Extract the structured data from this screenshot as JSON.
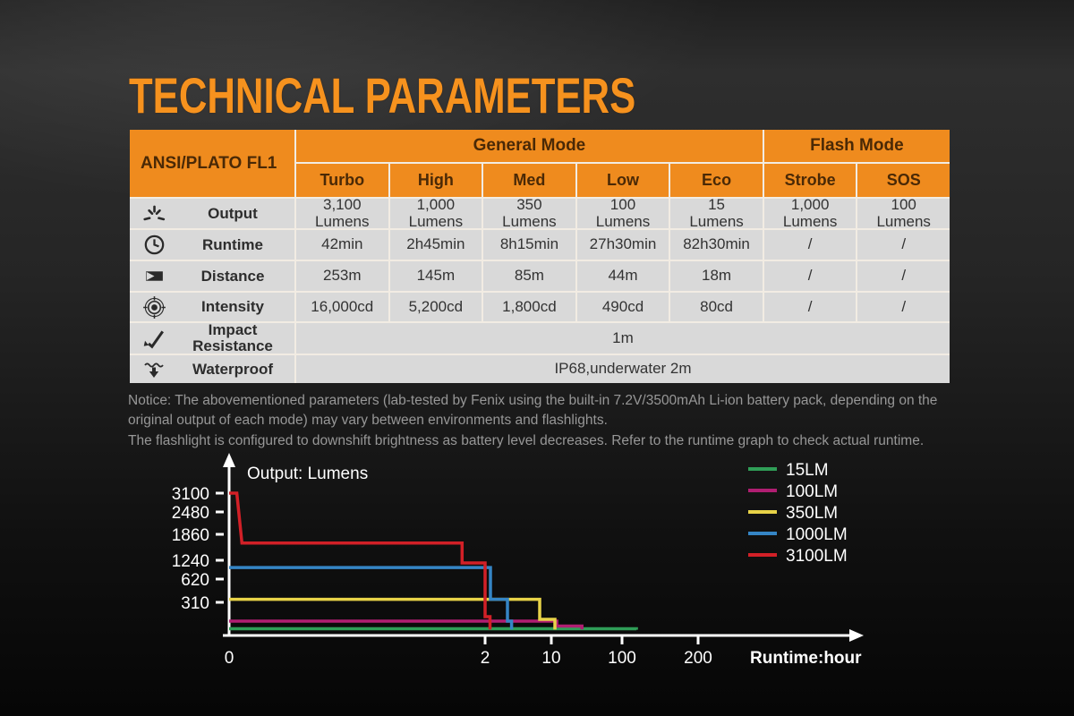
{
  "title": "TECHNICAL PARAMETERS",
  "colors": {
    "accent_orange": "#f6921e",
    "header_orange": "#ef8b1e",
    "header_text": "#4a2906",
    "row_bg": "#d9d9d9",
    "grid_line": "#f2ece3",
    "notice_text": "#979797",
    "chart_text": "#ffffff"
  },
  "table": {
    "corner_label": "ANSI/PLATO FL1",
    "groups": [
      {
        "label": "General Mode",
        "span": 5
      },
      {
        "label": "Flash Mode",
        "span": 2
      }
    ],
    "columns": [
      "Turbo",
      "High",
      "Med",
      "Low",
      "Eco",
      "Strobe",
      "SOS"
    ],
    "rows": [
      {
        "icon": "output-icon",
        "label": "Output",
        "cells": [
          "3,100\nLumens",
          "1,000\nLumens",
          "350\nLumens",
          "100\nLumens",
          "15\nLumens",
          "1,000\nLumens",
          "100\nLumens"
        ]
      },
      {
        "icon": "runtime-icon",
        "label": "Runtime",
        "cells": [
          "42min",
          "2h45min",
          "8h15min",
          "27h30min",
          "82h30min",
          "/",
          "/"
        ]
      },
      {
        "icon": "distance-icon",
        "label": "Distance",
        "cells": [
          "253m",
          "145m",
          "85m",
          "44m",
          "18m",
          "/",
          "/"
        ]
      },
      {
        "icon": "intensity-icon",
        "label": "Intensity",
        "cells": [
          "16,000cd",
          "5,200cd",
          "1,800cd",
          "490cd",
          "80cd",
          "/",
          "/"
        ]
      },
      {
        "icon": "impact-icon",
        "label": "Impact\nResistance",
        "span_value": "1m"
      },
      {
        "icon": "waterproof-icon",
        "label": "Waterproof",
        "span_value": "IP68,underwater 2m"
      }
    ]
  },
  "notice": {
    "paragraph1": "Notice: The abovementioned parameters (lab-tested by Fenix using the built-in 7.2V/3500mAh Li-ion battery pack, depending on the original output of each mode) may vary between environments and flashlights.",
    "paragraph2": "The flashlight is configured to downshift brightness as battery level decreases. Refer to the runtime graph to check actual runtime."
  },
  "chart_data": {
    "type": "line",
    "title": "Output: Lumens",
    "xlabel": "Runtime:hour",
    "x_unit": "hours",
    "y_unit": "lumens",
    "x_ticks": [
      0,
      2,
      10,
      100,
      200
    ],
    "y_ticks": [
      3100,
      2480,
      1860,
      1240,
      620,
      310
    ],
    "legend_position": "top-right",
    "grid": false,
    "series": [
      {
        "name": "15LM",
        "color": "#2f9e57",
        "points": [
          [
            0,
            15
          ],
          [
            119,
            15
          ],
          [
            119,
            4
          ]
        ]
      },
      {
        "name": "100LM",
        "color": "#b01e72",
        "points": [
          [
            0,
            100
          ],
          [
            17,
            100
          ],
          [
            17,
            45
          ],
          [
            49,
            45
          ],
          [
            49,
            8
          ]
        ]
      },
      {
        "name": "350LM",
        "color": "#e8d348",
        "points": [
          [
            0,
            350
          ],
          [
            8.6,
            350
          ],
          [
            8.6,
            120
          ],
          [
            14.5,
            120
          ],
          [
            14.5,
            6
          ]
        ]
      },
      {
        "name": "1000LM",
        "color": "#3585c5",
        "points": [
          [
            0,
            1000
          ],
          [
            2.65,
            1000
          ],
          [
            2.65,
            350
          ],
          [
            4.7,
            350
          ],
          [
            4.7,
            100
          ],
          [
            5.2,
            100
          ],
          [
            5.2,
            6
          ]
        ]
      },
      {
        "name": "3100LM",
        "color": "#d22027",
        "points": [
          [
            0,
            3100
          ],
          [
            0.06,
            3100
          ],
          [
            0.1,
            1650
          ],
          [
            1.82,
            1650
          ],
          [
            1.82,
            1150
          ],
          [
            2,
            1150
          ],
          [
            2,
            150
          ],
          [
            2.6,
            150
          ],
          [
            2.6,
            6
          ]
        ]
      }
    ]
  }
}
